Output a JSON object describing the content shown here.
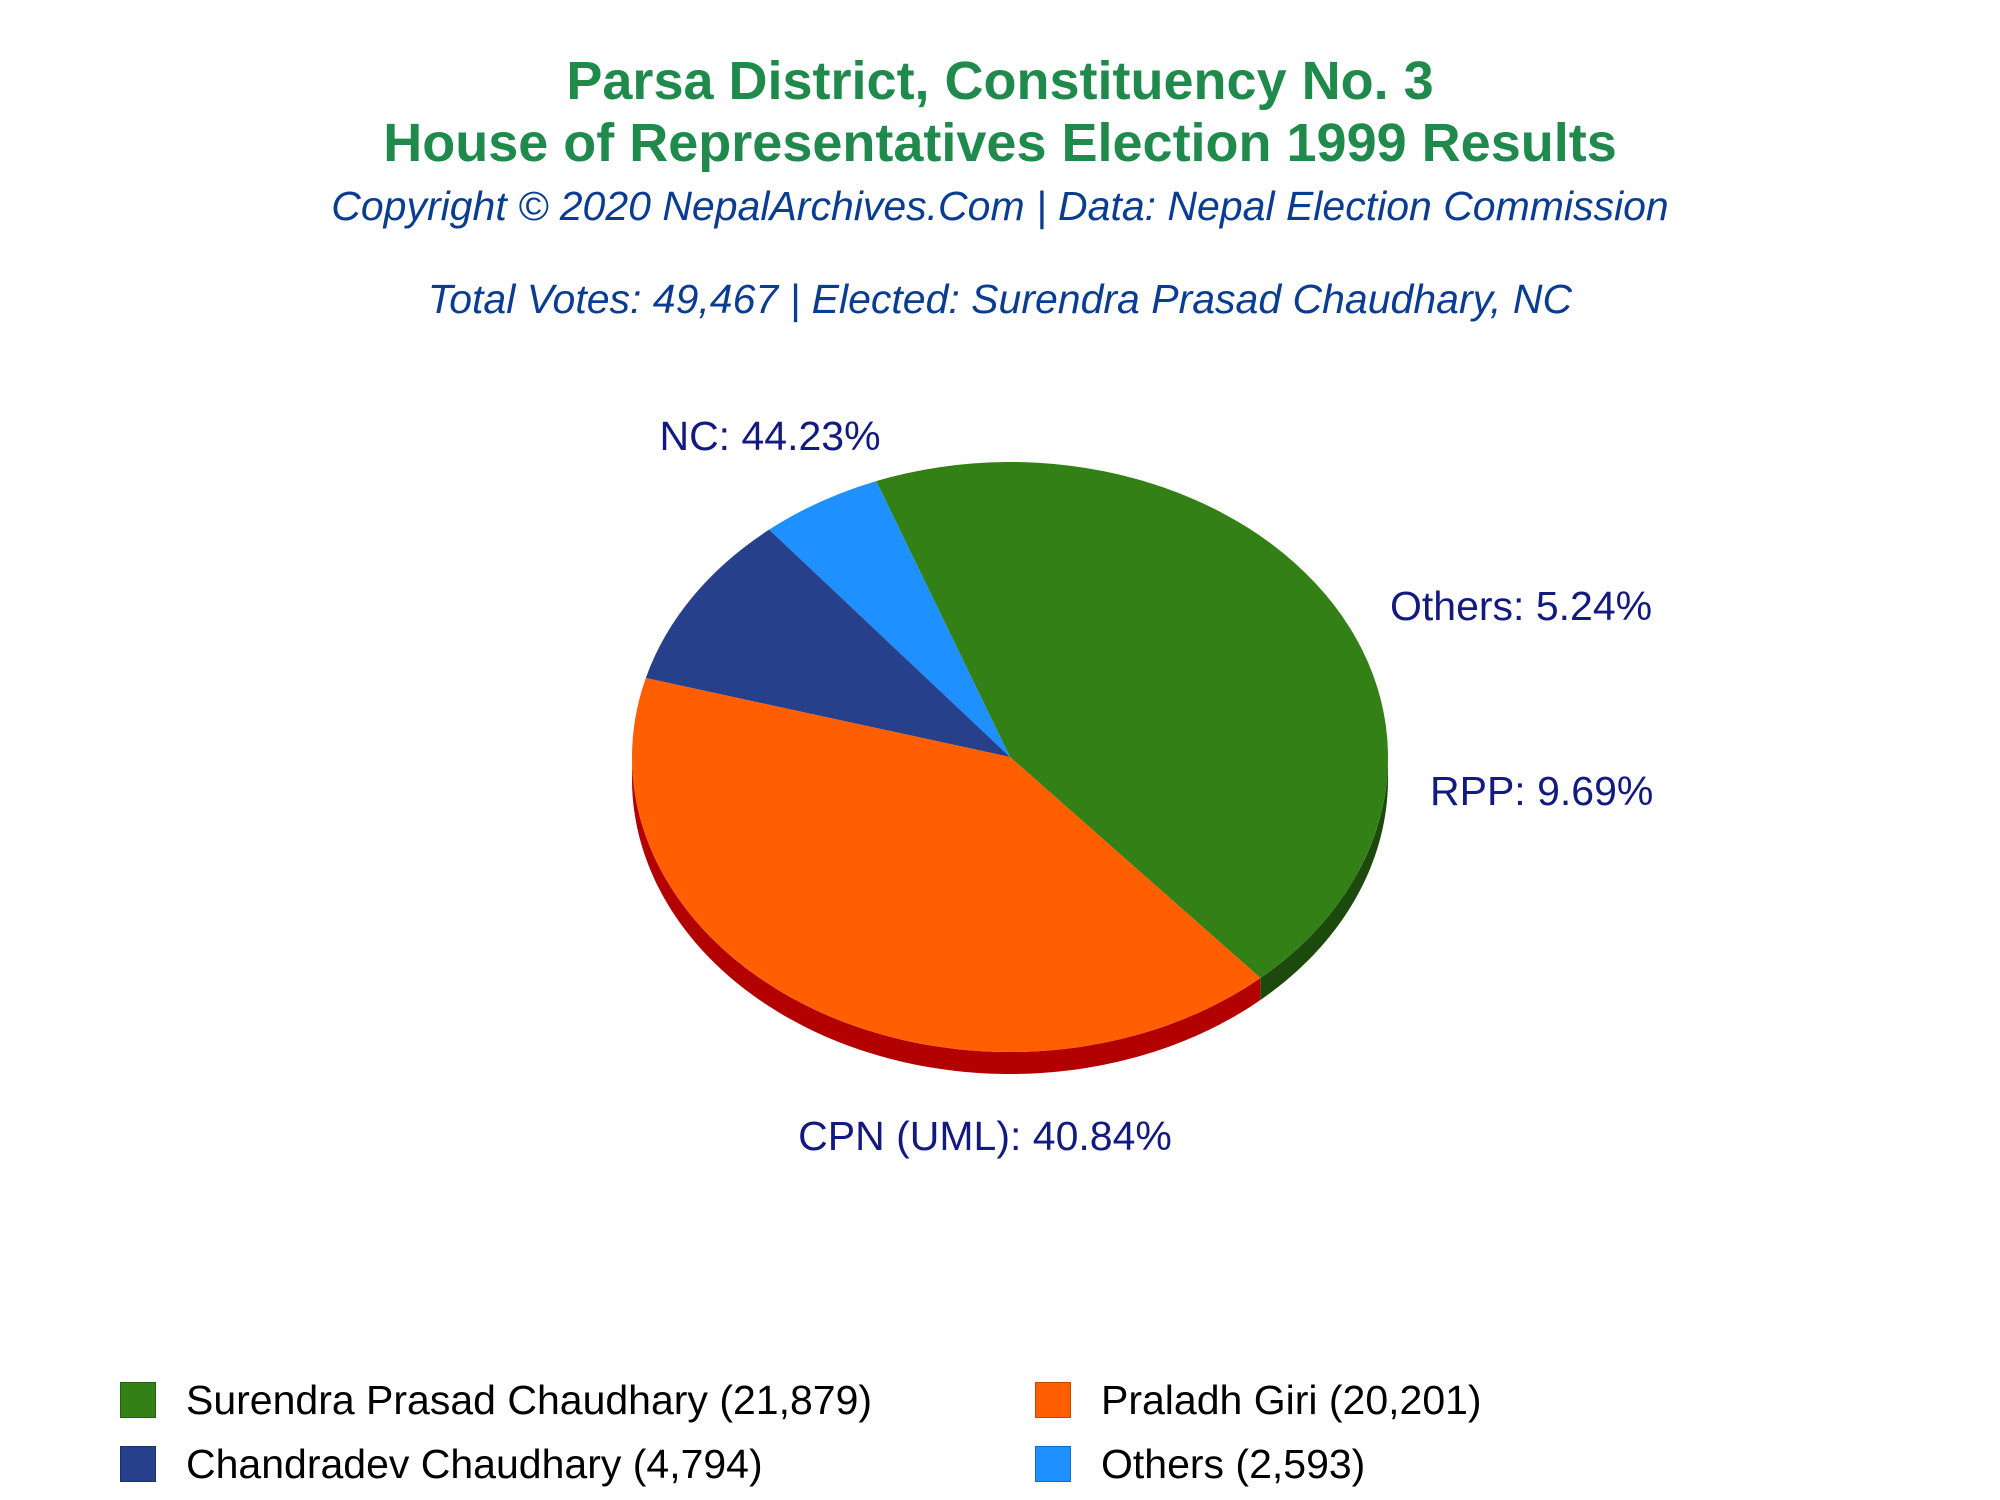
{
  "chart_data": {
    "type": "pie",
    "title": [
      "Parsa District, Constituency No. 3",
      "House of Representatives Election 1999 Results"
    ],
    "subtitle": "Copyright © 2020 NepalArchives.Com | Data: Nepal Election Commission",
    "summary": "Total Votes: 49,467 | Elected: Surendra Prasad Chaudhary, NC",
    "slices": [
      {
        "label": "NC: 44.23%",
        "party": "NC",
        "percent": 44.23,
        "color": "#338017",
        "side_color": "#1b4a0c"
      },
      {
        "label": "Others: 5.24%",
        "party": "Others",
        "percent": 5.24,
        "color": "#1e90ff",
        "side_color": "#1060b0"
      },
      {
        "label": "RPP: 9.69%",
        "party": "RPP",
        "percent": 9.69,
        "color": "#26408b",
        "side_color": "#101f55"
      },
      {
        "label": "CPN (UML): 40.84%",
        "party": "CPN (UML)",
        "percent": 40.84,
        "color": "#ff5f00",
        "side_color": "#b30000"
      }
    ],
    "legend": [
      {
        "text": "Surendra Prasad Chaudhary (21,879)",
        "candidate": "Surendra Prasad Chaudhary",
        "votes": 21879,
        "color": "#338017"
      },
      {
        "text": "Praladh Giri (20,201)",
        "candidate": "Praladh Giri",
        "votes": 20201,
        "color": "#ff5f00"
      },
      {
        "text": "Chandradev Chaudhary (4,794)",
        "candidate": "Chandradev Chaudhary",
        "votes": 4794,
        "color": "#26408b"
      },
      {
        "text": "Others (2,593)",
        "candidate": "Others",
        "votes": 2593,
        "color": "#1e90ff"
      }
    ],
    "legend_position": "bottom"
  }
}
